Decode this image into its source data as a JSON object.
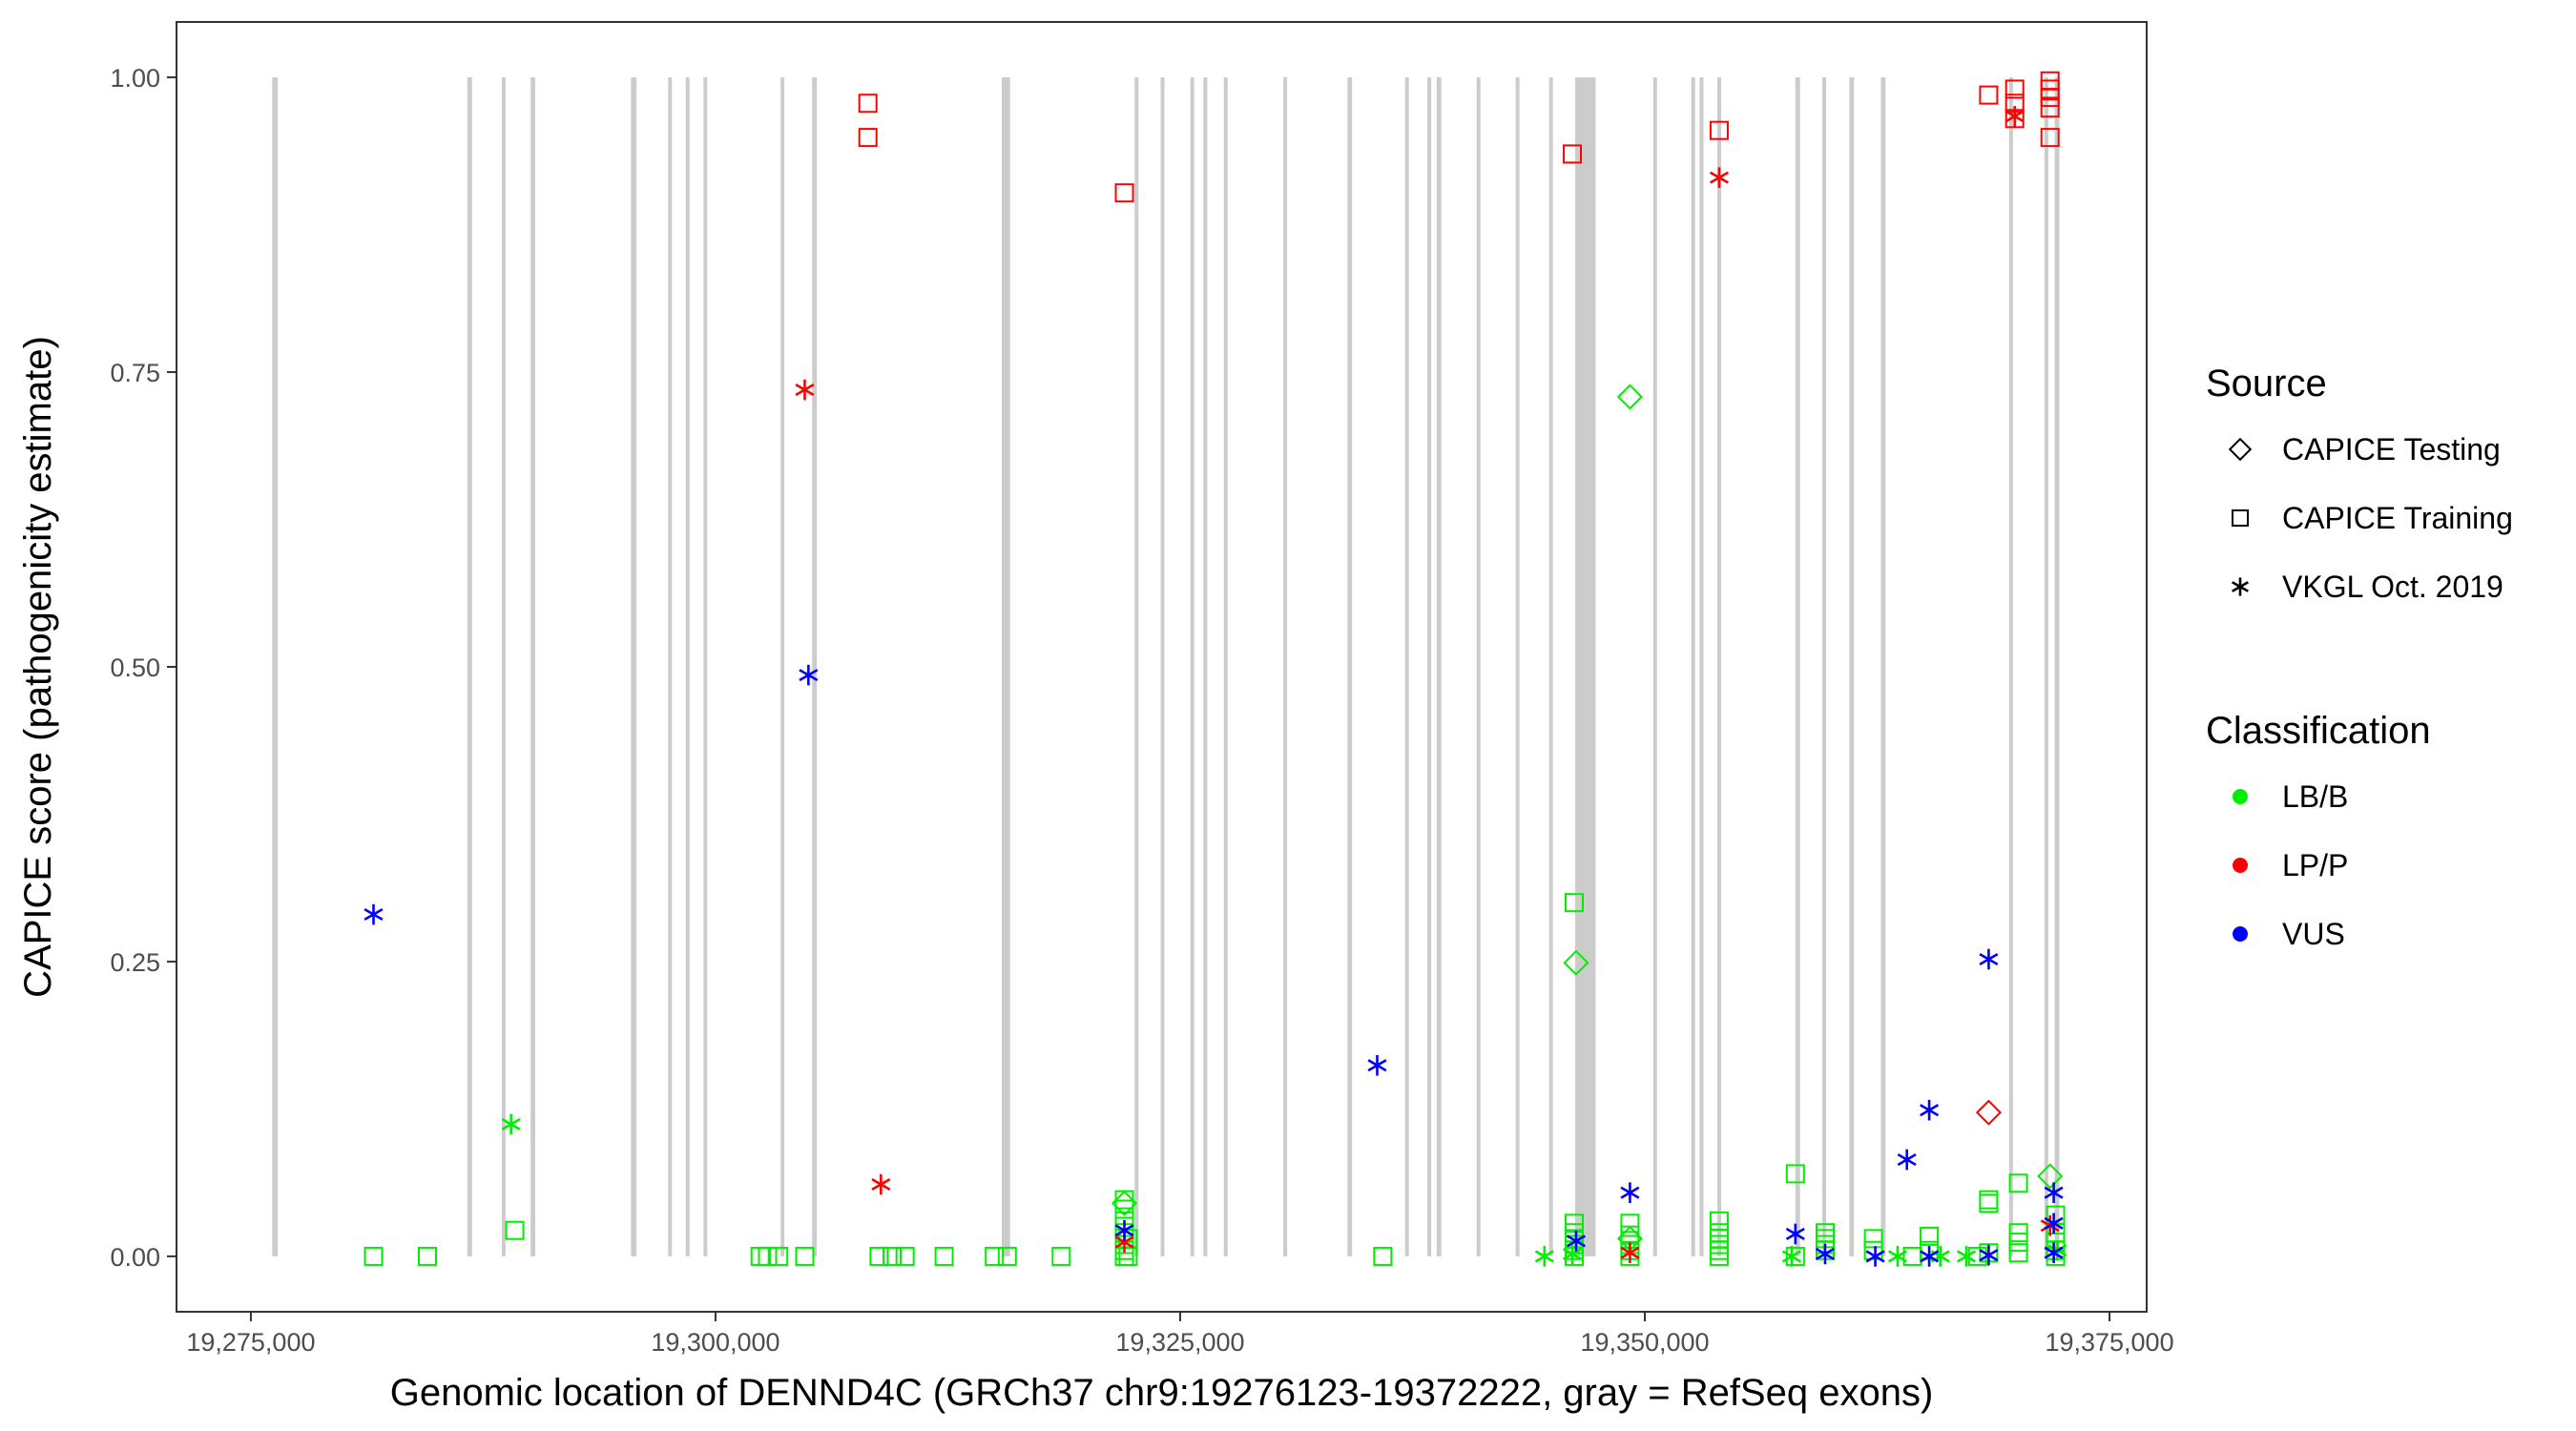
{
  "chart_data": {
    "type": "scatter",
    "xlabel": "Genomic location of DENND4C (GRCh37 chr9:19276123-19372222, gray = RefSeq exons)",
    "ylabel": "CAPICE score (pathogenicity estimate)",
    "xlim": [
      19271000,
      19377000
    ],
    "ylim": [
      -0.047,
      1.047
    ],
    "x_ticks": [
      19275000,
      19300000,
      19325000,
      19350000,
      19375000
    ],
    "x_tick_labels": [
      "19,275,000",
      "19,300,000",
      "19,325,000",
      "19,350,000",
      "19,375,000"
    ],
    "y_ticks": [
      0,
      0.25,
      0.5,
      0.75,
      1
    ],
    "y_tick_labels": [
      "0.00",
      "0.25",
      "0.50",
      "0.75",
      "1.00"
    ],
    "grid": false,
    "exon_color": "#cccccc",
    "exons": [
      [
        19276150,
        19276450
      ],
      [
        19286650,
        19286900
      ],
      [
        19288500,
        19288700
      ],
      [
        19290050,
        19290300
      ],
      [
        19295450,
        19295750
      ],
      [
        19297450,
        19297650
      ],
      [
        19298400,
        19298600
      ],
      [
        19299350,
        19299550
      ],
      [
        19303500,
        19303700
      ],
      [
        19305200,
        19305450
      ],
      [
        19315400,
        19315850
      ],
      [
        19322550,
        19322750
      ],
      [
        19323950,
        19324150
      ],
      [
        19325550,
        19325750
      ],
      [
        19326250,
        19326450
      ],
      [
        19327350,
        19327550
      ],
      [
        19330550,
        19330750
      ],
      [
        19334000,
        19334250
      ],
      [
        19337100,
        19337300
      ],
      [
        19338300,
        19338500
      ],
      [
        19338800,
        19339050
      ],
      [
        19340950,
        19341150
      ],
      [
        19343050,
        19343250
      ],
      [
        19344850,
        19345050
      ],
      [
        19346250,
        19347350
      ],
      [
        19350450,
        19350650
      ],
      [
        19352500,
        19352700
      ],
      [
        19352950,
        19353150
      ],
      [
        19353900,
        19354100
      ],
      [
        19358100,
        19358350
      ],
      [
        19359550,
        19359750
      ],
      [
        19361000,
        19361250
      ],
      [
        19362700,
        19362950
      ],
      [
        19369600,
        19369800
      ],
      [
        19371500,
        19371700
      ],
      [
        19372050,
        19372300
      ]
    ],
    "legend": {
      "position": "right",
      "source_title": "Source",
      "source_items": [
        {
          "name": "CAPICE Testing",
          "shape": "diamond"
        },
        {
          "name": "CAPICE Training",
          "shape": "square"
        },
        {
          "name": "VKGL Oct. 2019",
          "shape": "asterisk"
        }
      ],
      "class_title": "Classification",
      "class_items": [
        {
          "name": "LB/B",
          "color": "#00ee00"
        },
        {
          "name": "LP/P",
          "color": "#ff0000"
        },
        {
          "name": "VUS",
          "color": "#0000ff"
        }
      ]
    },
    "series": [
      {
        "source": "CAPICE Training",
        "classification": "LB/B",
        "points": [
          [
            19281600,
            0
          ],
          [
            19284500,
            0
          ],
          [
            19289200,
            0.022
          ],
          [
            19302400,
            0
          ],
          [
            19302800,
            0
          ],
          [
            19303400,
            0
          ],
          [
            19304800,
            0
          ],
          [
            19308800,
            0
          ],
          [
            19309500,
            0
          ],
          [
            19310200,
            0
          ],
          [
            19312300,
            0
          ],
          [
            19315000,
            0
          ],
          [
            19315700,
            0
          ],
          [
            19318600,
            0
          ],
          [
            19322000,
            0
          ],
          [
            19322000,
            0.005
          ],
          [
            19322000,
            0.01
          ],
          [
            19322000,
            0.02
          ],
          [
            19322000,
            0.03
          ],
          [
            19322000,
            0.04
          ],
          [
            19322000,
            0.048
          ],
          [
            19322200,
            0
          ],
          [
            19322200,
            0.015
          ],
          [
            19335900,
            0
          ],
          [
            19346200,
            0
          ],
          [
            19346200,
            0.005
          ],
          [
            19346200,
            0.01
          ],
          [
            19346200,
            0.015
          ],
          [
            19346200,
            0.02
          ],
          [
            19346200,
            0.028
          ],
          [
            19346200,
            0.3
          ],
          [
            19349200,
            0
          ],
          [
            19349200,
            0.005
          ],
          [
            19349200,
            0.01
          ],
          [
            19349200,
            0.018
          ],
          [
            19349200,
            0.028
          ],
          [
            19354000,
            0
          ],
          [
            19354000,
            0.005
          ],
          [
            19354000,
            0.01
          ],
          [
            19354000,
            0.015
          ],
          [
            19354000,
            0.02
          ],
          [
            19354000,
            0.03
          ],
          [
            19358100,
            0
          ],
          [
            19358100,
            0.07
          ],
          [
            19359700,
            0.005
          ],
          [
            19359700,
            0.01
          ],
          [
            19359700,
            0.015
          ],
          [
            19359700,
            0.02
          ],
          [
            19362300,
            0.005
          ],
          [
            19362300,
            0.015
          ],
          [
            19364400,
            0
          ],
          [
            19365300,
            0.005
          ],
          [
            19365300,
            0.017
          ],
          [
            19367900,
            0
          ],
          [
            19368500,
            0.003
          ],
          [
            19368500,
            0.045
          ],
          [
            19368500,
            0.048
          ],
          [
            19370100,
            0.003
          ],
          [
            19370100,
            0.012
          ],
          [
            19370100,
            0.02
          ],
          [
            19370100,
            0.062
          ],
          [
            19372100,
            0
          ],
          [
            19372100,
            0.005
          ],
          [
            19372100,
            0.012
          ],
          [
            19372100,
            0.02
          ],
          [
            19372100,
            0.035
          ]
        ]
      },
      {
        "source": "CAPICE Training",
        "classification": "LP/P",
        "points": [
          [
            19308200,
            0.978
          ],
          [
            19308200,
            0.949
          ],
          [
            19322000,
            0.902
          ],
          [
            19346100,
            0.935
          ],
          [
            19354000,
            0.955
          ],
          [
            19368500,
            0.985
          ],
          [
            19369900,
            0.99
          ],
          [
            19369900,
            0.978
          ],
          [
            19369900,
            0.965
          ],
          [
            19371800,
            0.997
          ],
          [
            19371800,
            0.99
          ],
          [
            19371800,
            0.983
          ],
          [
            19371800,
            0.974
          ],
          [
            19371800,
            0.949
          ]
        ]
      },
      {
        "source": "CAPICE Testing",
        "classification": "LB/B",
        "points": [
          [
            19349200,
            0.729
          ],
          [
            19346300,
            0.249
          ],
          [
            19371800,
            0.068
          ],
          [
            19322000,
            0.045
          ],
          [
            19349200,
            0.015
          ]
        ]
      },
      {
        "source": "CAPICE Testing",
        "classification": "LP/P",
        "points": [
          [
            19368500,
            0.122
          ]
        ]
      },
      {
        "source": "VKGL Oct. 2019",
        "classification": "LB/B",
        "points": [
          [
            19289000,
            0.112
          ],
          [
            19344600,
            0
          ],
          [
            19346100,
            0.002
          ],
          [
            19357900,
            0
          ],
          [
            19363600,
            0
          ],
          [
            19365900,
            0
          ],
          [
            19367300,
            0
          ],
          [
            19372200,
            0.005
          ]
        ]
      },
      {
        "source": "VKGL Oct. 2019",
        "classification": "LP/P",
        "points": [
          [
            19304800,
            0.735
          ],
          [
            19308900,
            0.061
          ],
          [
            19322000,
            0.012
          ],
          [
            19349200,
            0.003
          ],
          [
            19354000,
            0.915
          ],
          [
            19369900,
            0.967
          ],
          [
            19371800,
            0.026
          ]
        ]
      },
      {
        "source": "VKGL Oct. 2019",
        "classification": "VUS",
        "points": [
          [
            19281600,
            0.29
          ],
          [
            19305000,
            0.493
          ],
          [
            19322000,
            0.022
          ],
          [
            19335600,
            0.162
          ],
          [
            19346300,
            0.013
          ],
          [
            19349200,
            0.054
          ],
          [
            19358100,
            0.019
          ],
          [
            19359700,
            0.002
          ],
          [
            19362400,
            0
          ],
          [
            19364100,
            0.082
          ],
          [
            19365300,
            0.124
          ],
          [
            19365300,
            0
          ],
          [
            19368500,
            0.252
          ],
          [
            19368500,
            0.001
          ],
          [
            19372000,
            0.054
          ],
          [
            19372000,
            0.028
          ],
          [
            19372000,
            0.003
          ]
        ]
      }
    ]
  }
}
